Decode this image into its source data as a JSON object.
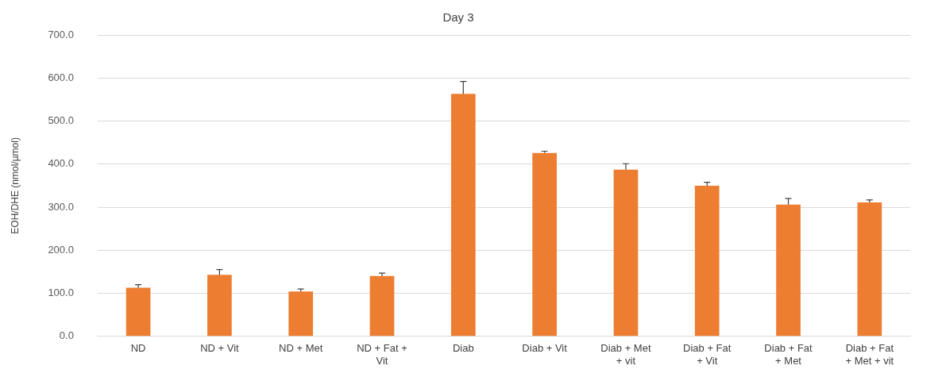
{
  "chart_data": {
    "type": "bar",
    "title": "Day 3",
    "ylabel": "EOH/DHE (nmol/µmol)",
    "categories": [
      "ND",
      "ND + Vit",
      "ND + Met",
      "ND + Fat + Vit",
      "Diab",
      "Diab + Vit",
      "Diab + Met + vit",
      "Diab + Fat + Vit",
      "Diab + Fat + Met",
      "Diab + Fat + Met + vit"
    ],
    "values": [
      113,
      143,
      104,
      140,
      563,
      426,
      387,
      350,
      306,
      311
    ],
    "errors": [
      [
        113,
        120
      ],
      [
        143,
        155
      ],
      [
        104,
        110
      ],
      [
        140,
        147
      ],
      [
        563,
        592
      ],
      [
        426,
        430
      ],
      [
        387,
        401
      ],
      [
        350,
        358
      ],
      [
        306,
        320
      ],
      [
        311,
        317
      ]
    ],
    "color": "#ed7d31",
    "ylim": [
      0,
      700
    ],
    "yticks": [
      {
        "value": 0,
        "label": "0.0"
      },
      {
        "value": 100,
        "label": "100.0"
      },
      {
        "value": 200,
        "label": "200.0"
      },
      {
        "value": 300,
        "label": "300.0"
      },
      {
        "value": 400,
        "label": "400.0"
      },
      {
        "value": 500,
        "label": "500.0"
      },
      {
        "value": 600,
        "label": "600.0"
      },
      {
        "value": 700,
        "label": "700.0"
      }
    ],
    "grid": "y",
    "legend": false
  }
}
